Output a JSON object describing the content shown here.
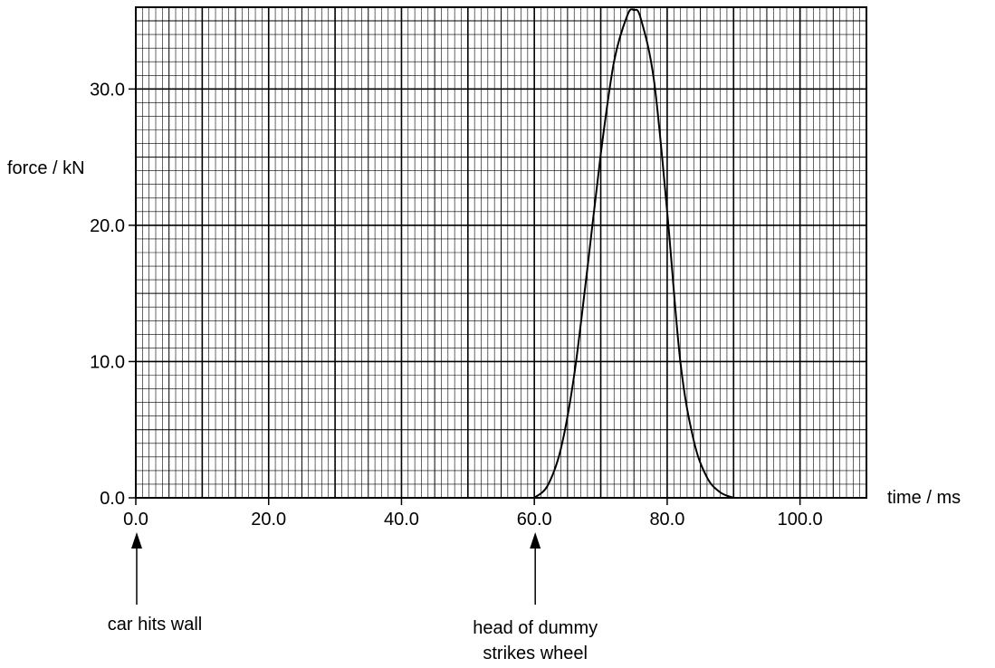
{
  "chart_data": {
    "type": "line",
    "title": "",
    "xlabel": "time / ms",
    "ylabel": "force / kN",
    "xlim": [
      0,
      110
    ],
    "ylim": [
      0,
      36
    ],
    "grid": true,
    "x_ticks": [
      0,
      20,
      40,
      60,
      80,
      100
    ],
    "x_tick_labels": [
      "0.0",
      "20.0",
      "40.0",
      "60.0",
      "80.0",
      "100.0"
    ],
    "y_ticks": [
      0,
      10,
      20,
      30
    ],
    "y_tick_labels": [
      "0.0",
      "10.0",
      "20.0",
      "30.0"
    ],
    "series": [
      {
        "x": [
          60,
          62,
          64,
          66,
          68,
          70,
          72,
          74,
          75,
          76,
          78,
          80,
          82,
          84,
          86,
          88,
          90
        ],
        "y": [
          0,
          0.9,
          3.6,
          9.0,
          16.9,
          25.2,
          32.0,
          35.4,
          35.8,
          35.2,
          30.7,
          21.0,
          9.9,
          4.2,
          1.5,
          0.4,
          0
        ]
      }
    ],
    "annotations": [
      {
        "text": "car hits wall",
        "x": 0
      },
      {
        "text": "head of dummy strikes wheel",
        "x": 60
      }
    ]
  }
}
